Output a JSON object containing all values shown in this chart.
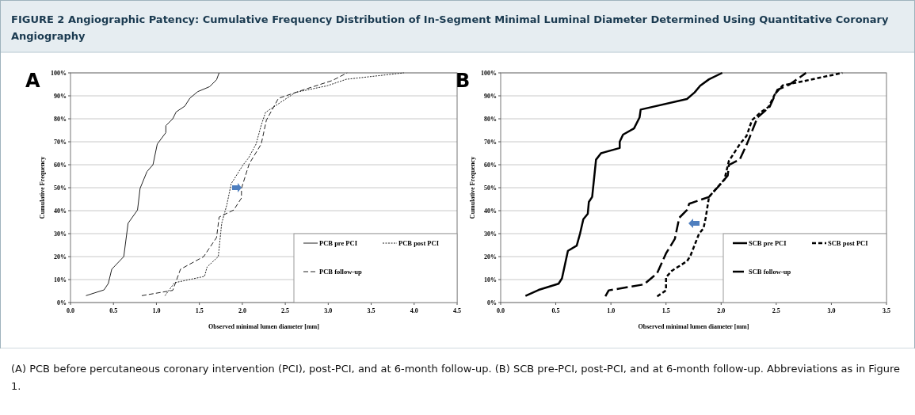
{
  "chart_data": [
    {
      "type": "line",
      "title": "FIGURE 2 Angiographic Patency: Cumulative Frequency Distribution of In-Segment Minimal Luminal Diameter Determined Using Quantitative Coronary Angiography",
      "xlabel": "Observed minimal lumen diameter [mm]",
      "ylabel": "Cumulative Frequency",
      "annotations": [
        "A"
      ],
      "xlim": [
        0,
        4.5
      ],
      "ylim": [
        0,
        100
      ],
      "xticks": [
        {
          "value": 0,
          "label": "0.0"
        },
        {
          "value": 0.5,
          "label": "0.5"
        },
        {
          "value": 1,
          "label": "1.0"
        },
        {
          "value": 1.5,
          "label": "1.5"
        },
        {
          "value": 2,
          "label": "2.0"
        },
        {
          "value": 2.5,
          "label": "2.5"
        },
        {
          "value": 3,
          "label": "3.0"
        },
        {
          "value": 3.5,
          "label": "3.5"
        },
        {
          "value": 4,
          "label": "4.0"
        },
        {
          "value": 4.5,
          "label": "4.5"
        }
      ],
      "yticks": [
        {
          "value": 0,
          "label": "0%"
        },
        {
          "value": 10,
          "label": "10%"
        },
        {
          "value": 20,
          "label": "20%"
        },
        {
          "value": 30,
          "label": "30%"
        },
        {
          "value": 40,
          "label": "40%"
        },
        {
          "value": 50,
          "label": "50%"
        },
        {
          "value": 60,
          "label": "60%"
        },
        {
          "value": 70,
          "label": "70%"
        },
        {
          "value": 80,
          "label": "80%"
        },
        {
          "value": 90,
          "label": "90%"
        },
        {
          "value": 100,
          "label": "100%"
        }
      ],
      "grid": "y",
      "legend": "bottom right",
      "series": [
        {
          "name": "PCB pre PCI",
          "color": "#222222",
          "line_style": "solid",
          "x": [
            0.18,
            0.39,
            0.44,
            0.48,
            0.62,
            0.67,
            0.78,
            0.81,
            0.89,
            0.96,
            1.01,
            1.11,
            1.11,
            1.19,
            1.23,
            1.33,
            1.39,
            1.48,
            1.62,
            1.7,
            1.73
          ],
          "values": [
            3,
            5.5,
            8.3,
            14.5,
            20,
            34.5,
            40.3,
            49.7,
            57,
            60,
            69,
            74,
            77,
            80,
            83,
            85.5,
            89,
            91.8,
            94,
            97,
            100
          ]
        },
        {
          "name": "PCB post PCI",
          "color": "#222222",
          "line_style": "dotted",
          "x": [
            1.1,
            1.21,
            1.56,
            1.59,
            1.72,
            1.76,
            1.82,
            1.87,
            2.01,
            2.07,
            2.16,
            2.22,
            2.27,
            2.62,
            2.99,
            3.21,
            3.88
          ],
          "values": [
            3,
            8.6,
            11.4,
            15.5,
            20,
            34.5,
            42.6,
            51.7,
            60,
            62.8,
            69,
            77.2,
            82.8,
            91.5,
            94.4,
            97.2,
            100
          ]
        },
        {
          "name": "PCB follow-up",
          "color": "#222222",
          "line_style": "dashed",
          "x": [
            0.83,
            1.19,
            1.28,
            1.55,
            1.7,
            1.73,
            1.9,
            1.99,
            1.99,
            2.08,
            2.22,
            2.28,
            2.42,
            2.71,
            3.05,
            3.22
          ],
          "values": [
            3,
            5.3,
            14.5,
            20,
            28.3,
            37.2,
            40.3,
            45.5,
            49.7,
            60.4,
            69,
            79.4,
            88.9,
            92.6,
            96.7,
            100
          ]
        }
      ]
    },
    {
      "type": "line",
      "xlabel": "Observed minimal lumen diameter [mm]",
      "ylabel": "Cumulative Frequency",
      "annotations": [
        "B",
        "(A) PCB before percutaneous coronary intervention (PCI), post-PCI, and at 6-month follow-up. (B) SCB pre-PCI, post-PCI, and at 6-month follow-up. Abbreviations as in Figure 1."
      ],
      "xlim": [
        0,
        3.5
      ],
      "ylim": [
        0,
        100
      ],
      "xticks": [
        {
          "value": 0,
          "label": "0.0"
        },
        {
          "value": 0.5,
          "label": "0.5"
        },
        {
          "value": 1,
          "label": "1.0"
        },
        {
          "value": 1.5,
          "label": "1.5"
        },
        {
          "value": 2,
          "label": "2.0"
        },
        {
          "value": 2.5,
          "label": "2.5"
        },
        {
          "value": 3,
          "label": "3.0"
        },
        {
          "value": 3.5,
          "label": "3.5"
        }
      ],
      "yticks": [
        {
          "value": 0,
          "label": "0%"
        },
        {
          "value": 10,
          "label": "10%"
        },
        {
          "value": 20,
          "label": "20%"
        },
        {
          "value": 30,
          "label": "30%"
        },
        {
          "value": 40,
          "label": "40%"
        },
        {
          "value": 50,
          "label": "50%"
        },
        {
          "value": 60,
          "label": "60%"
        },
        {
          "value": 70,
          "label": "70%"
        },
        {
          "value": 80,
          "label": "80%"
        },
        {
          "value": 90,
          "label": "90%"
        },
        {
          "value": 100,
          "label": "100%"
        }
      ],
      "grid": "y",
      "legend": "bottom right",
      "series": [
        {
          "name": "SCB pre PCI",
          "color": "#000000",
          "line_style": "solid",
          "x": [
            0.225,
            0.345,
            0.525,
            0.556,
            0.61,
            0.69,
            0.72,
            0.75,
            0.79,
            0.8,
            0.83,
            0.865,
            0.91,
            1.08,
            1.08,
            1.11,
            1.21,
            1.26,
            1.27,
            1.69,
            1.76,
            1.81,
            1.89,
            2.01
          ],
          "values": [
            2.9,
            5.5,
            8.2,
            10.5,
            22.5,
            24.8,
            30,
            36.3,
            38.6,
            43.8,
            46,
            62.2,
            65,
            67.3,
            70,
            73.1,
            75.8,
            80.6,
            84,
            88.6,
            91.5,
            94.4,
            97.2,
            100
          ]
        },
        {
          "name": "SCB post PCI",
          "color": "#000000",
          "line_style": "dotted",
          "x": [
            1.42,
            1.5,
            1.5,
            1.555,
            1.69,
            1.72,
            1.8,
            1.84,
            1.86,
            1.89,
            2.03,
            2.07,
            2.17,
            2.23,
            2.28,
            2.36,
            2.43,
            2.49,
            2.56,
            2.72,
            3.1
          ],
          "values": [
            2.7,
            5.3,
            11,
            13.9,
            18,
            20.2,
            30,
            32.3,
            36.9,
            46,
            53.6,
            61.6,
            69,
            72.5,
            79.4,
            82.9,
            85.2,
            90.9,
            94.6,
            96.1,
            100
          ]
        },
        {
          "name": "SCB follow-up",
          "color": "#000000",
          "line_style": "dashed",
          "x": [
            0.95,
            0.98,
            1.3,
            1.42,
            1.5,
            1.58,
            1.62,
            1.69,
            1.71,
            1.89,
            1.99,
            2.06,
            2.07,
            2.17,
            2.24,
            2.33,
            2.44,
            2.51,
            2.62,
            2.77
          ],
          "values": [
            2.7,
            5.3,
            7.9,
            12.8,
            21.4,
            27.7,
            36.9,
            40.3,
            43,
            46,
            51.3,
            55.3,
            59.9,
            62.4,
            69.7,
            80.6,
            85.2,
            92.6,
            94.9,
            100
          ]
        }
      ]
    }
  ]
}
